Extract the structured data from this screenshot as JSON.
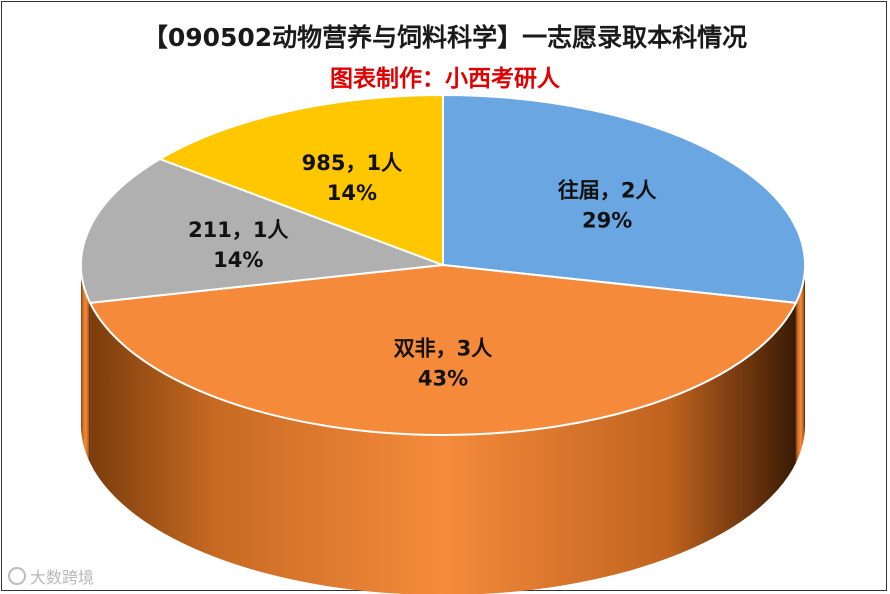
{
  "chart_data": {
    "type": "pie",
    "title": "【090502动物营养与饲料科学】一志愿录取本科情况",
    "subtitle": "图表制作：小西考研人",
    "subtitle_color": "#e00000",
    "slices": [
      {
        "label": "往届",
        "count": 2,
        "unit": "人",
        "percent": "29%",
        "color": "#6aa6e2"
      },
      {
        "label": "双非",
        "count": 3,
        "unit": "人",
        "percent": "43%",
        "color": "#f58a3b"
      },
      {
        "label": "211",
        "count": 1,
        "unit": "人",
        "percent": "14%",
        "color": "#b0b0b0"
      },
      {
        "label": "985",
        "count": 1,
        "unit": "人",
        "percent": "14%",
        "color": "#ffc700"
      }
    ],
    "separator": "，",
    "style": "3d-pie"
  },
  "watermark": {
    "text": "大数跨境"
  }
}
